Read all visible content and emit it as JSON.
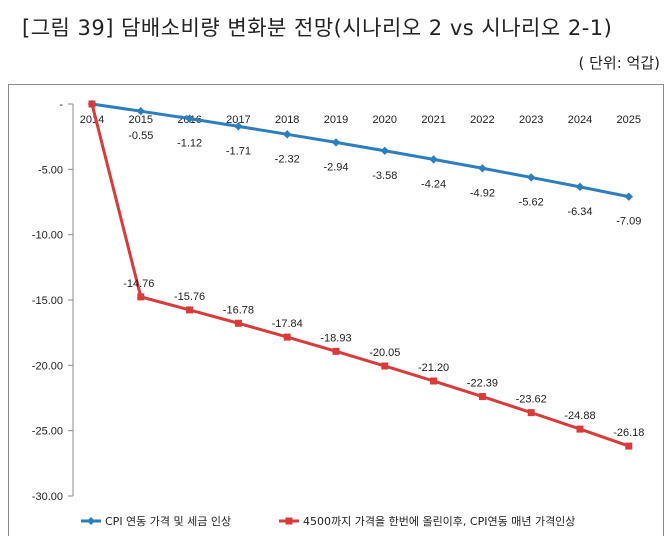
{
  "chart_data": {
    "type": "line",
    "title": "[그림 39] 담배소비량 변화분 전망(시나리오 2 vs 시나리오 2-1)",
    "unit_note": "( 단위: 억갑)",
    "categories": [
      "2014",
      "2015",
      "2016",
      "2017",
      "2018",
      "2019",
      "2020",
      "2021",
      "2022",
      "2023",
      "2024",
      "2025"
    ],
    "ylim": [
      -30,
      0
    ],
    "yticks": [
      {
        "value": 0,
        "label": "-"
      },
      {
        "value": -5,
        "label": "-5.00"
      },
      {
        "value": -10,
        "label": "-10.00"
      },
      {
        "value": -15,
        "label": "-15.00"
      },
      {
        "value": -20,
        "label": "-20.00"
      },
      {
        "value": -25,
        "label": "-25.00"
      },
      {
        "value": -30,
        "label": "-30.00"
      }
    ],
    "series": [
      {
        "name": "CPI 연동 가격 및 세금 인상",
        "color": "#2e7ebf",
        "marker": "diamond",
        "values": [
          0,
          -0.55,
          -1.12,
          -1.71,
          -2.32,
          -2.94,
          -3.58,
          -4.24,
          -4.92,
          -5.62,
          -6.34,
          -7.09
        ],
        "labels": [
          "",
          "-0.55",
          "-1.12",
          "-1.71",
          "-2.32",
          "-2.94",
          "-3.58",
          "-4.24",
          "-4.92",
          "-5.62",
          "-6.34",
          "-7.09"
        ]
      },
      {
        "name": "4500까지 가격을 한번에 올린이후, CPI연동 매년 가격인상",
        "color": "#d93a3a",
        "marker": "square",
        "values": [
          0,
          -14.76,
          -15.76,
          -16.78,
          -17.84,
          -18.93,
          -20.05,
          -21.2,
          -22.39,
          -23.62,
          -24.88,
          -26.18
        ],
        "labels": [
          "",
          "-14.76",
          "-15.76",
          "-16.78",
          "-17.84",
          "-18.93",
          "-20.05",
          "-21.20",
          "-22.39",
          "-23.62",
          "-24.88",
          "-26.18"
        ]
      }
    ],
    "legend": "bottom",
    "grid": false
  }
}
